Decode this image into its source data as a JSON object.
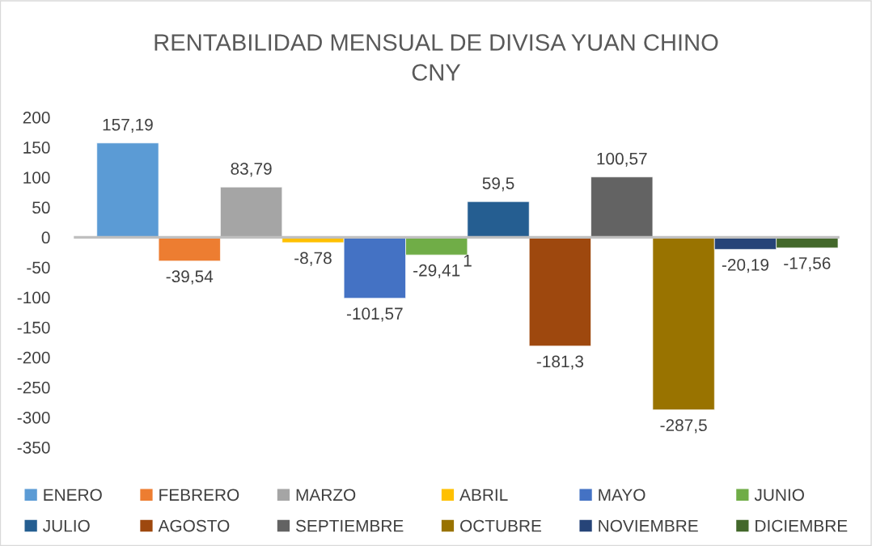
{
  "chart_data": {
    "type": "bar",
    "title": "RENTABILIDAD MENSUAL DE DIVISA YUAN CHINO",
    "subtitle": "CNY",
    "categories": [
      null
    ],
    "series": [
      {
        "name": "ENERO",
        "color": "#5b9bd5",
        "values": [
          157.19
        ],
        "value_labels": [
          "157,19"
        ]
      },
      {
        "name": "FEBRERO",
        "color": "#ed7d31",
        "values": [
          -39.54
        ],
        "value_labels": [
          "-39,54"
        ]
      },
      {
        "name": "MARZO",
        "color": "#a5a5a5",
        "values": [
          83.79
        ],
        "value_labels": [
          "83,79"
        ]
      },
      {
        "name": "ABRIL",
        "color": "#ffc000",
        "values": [
          -8.78
        ],
        "value_labels": [
          "-8,78"
        ]
      },
      {
        "name": "MAYO",
        "color": "#4472c4",
        "values": [
          -101.57
        ],
        "value_labels": [
          "-101,57"
        ]
      },
      {
        "name": "JUNIO",
        "color": "#70ad47",
        "values": [
          -29.41
        ],
        "value_labels": [
          "-29,41"
        ]
      },
      {
        "name": "JULIO",
        "color": "#255e91",
        "values": [
          59.5
        ],
        "value_labels": [
          "59,5"
        ]
      },
      {
        "name": "AGOSTO",
        "color": "#9e480e",
        "values": [
          -181.3
        ],
        "value_labels": [
          "-181,3"
        ]
      },
      {
        "name": "SEPTIEMBRE",
        "color": "#636363",
        "values": [
          100.57
        ],
        "value_labels": [
          "100,57"
        ]
      },
      {
        "name": "OCTUBRE",
        "color": "#997300",
        "values": [
          -287.5
        ],
        "value_labels": [
          "-287,5"
        ]
      },
      {
        "name": "NOVIEMBRE",
        "color": "#264478",
        "values": [
          -20.19
        ],
        "value_labels": [
          "-20,19"
        ]
      },
      {
        "name": "DICIEMBRE",
        "color": "#43682b",
        "values": [
          -17.56
        ],
        "value_labels": [
          "-17,56"
        ]
      }
    ],
    "annotations": [
      "1"
    ],
    "ylim": [
      -350,
      200
    ],
    "yticks": [
      -350,
      -300,
      -250,
      -200,
      -150,
      -100,
      -50,
      0,
      50,
      100,
      150,
      200
    ],
    "legend": "bottom"
  }
}
